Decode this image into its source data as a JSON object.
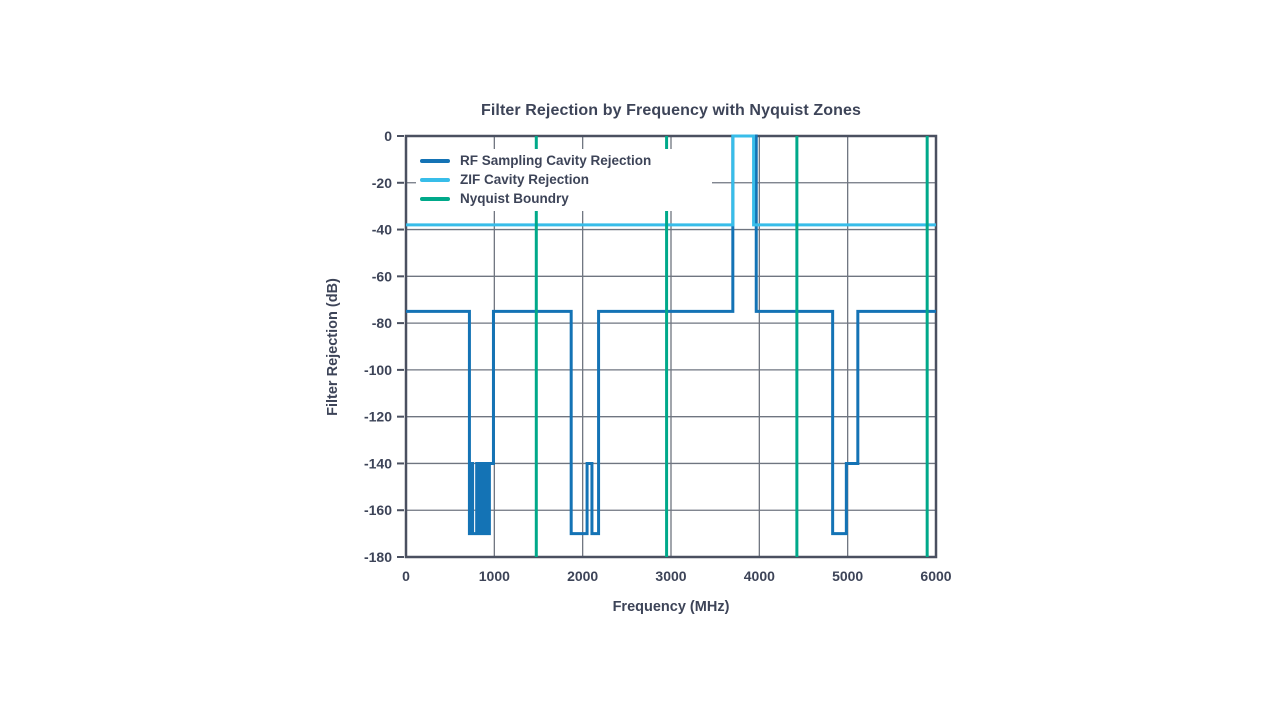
{
  "page": {
    "background": "#ffffff"
  },
  "palette": {
    "text": "#3d4458",
    "grid": "#6f7580",
    "frame": "#4a5060",
    "rf_blue": "#1473b5",
    "zif_cyan": "#38bde9",
    "nyquist_green": "#00a98a"
  },
  "chart_data": {
    "type": "line",
    "title": "Filter Rejection by Frequency with Nyquist Zones",
    "xlabel": "Frequency (MHz)",
    "ylabel": "Filter Rejection (dB)",
    "xlim": [
      0,
      6000
    ],
    "ylim": [
      -180,
      0
    ],
    "xticks": [
      0,
      1000,
      2000,
      3000,
      4000,
      5000,
      6000
    ],
    "yticks": [
      0,
      -20,
      -40,
      -60,
      -80,
      -100,
      -120,
      -140,
      -160,
      -180
    ],
    "grid": true,
    "legend_position": "inside-top-left",
    "series": [
      {
        "name": "RF Sampling Cavity Rejection",
        "color": "#1473b5",
        "style": "step-line",
        "points": [
          [
            0,
            -75
          ],
          [
            718,
            -75
          ],
          [
            718,
            -170
          ],
          [
            724,
            -170
          ],
          [
            724,
            -140
          ],
          [
            727,
            -140
          ],
          [
            727,
            -170
          ],
          [
            733,
            -170
          ],
          [
            733,
            -140
          ],
          [
            736,
            -140
          ],
          [
            736,
            -170
          ],
          [
            742,
            -170
          ],
          [
            742,
            -140
          ],
          [
            745,
            -140
          ],
          [
            745,
            -170
          ],
          [
            751,
            -170
          ],
          [
            751,
            -140
          ],
          [
            754,
            -140
          ],
          [
            754,
            -170
          ],
          [
            800,
            -170
          ],
          [
            800,
            -140
          ],
          [
            803,
            -140
          ],
          [
            803,
            -170
          ],
          [
            809,
            -170
          ],
          [
            809,
            -140
          ],
          [
            812,
            -140
          ],
          [
            812,
            -170
          ],
          [
            818,
            -170
          ],
          [
            818,
            -140
          ],
          [
            821,
            -140
          ],
          [
            821,
            -170
          ],
          [
            827,
            -170
          ],
          [
            827,
            -140
          ],
          [
            830,
            -140
          ],
          [
            830,
            -170
          ],
          [
            836,
            -170
          ],
          [
            836,
            -140
          ],
          [
            839,
            -140
          ],
          [
            839,
            -170
          ],
          [
            845,
            -170
          ],
          [
            845,
            -140
          ],
          [
            848,
            -140
          ],
          [
            848,
            -170
          ],
          [
            854,
            -170
          ],
          [
            854,
            -140
          ],
          [
            857,
            -140
          ],
          [
            857,
            -170
          ],
          [
            863,
            -170
          ],
          [
            863,
            -140
          ],
          [
            866,
            -140
          ],
          [
            866,
            -170
          ],
          [
            872,
            -170
          ],
          [
            872,
            -140
          ],
          [
            875,
            -140
          ],
          [
            875,
            -170
          ],
          [
            881,
            -170
          ],
          [
            881,
            -140
          ],
          [
            884,
            -140
          ],
          [
            884,
            -170
          ],
          [
            890,
            -170
          ],
          [
            890,
            -140
          ],
          [
            893,
            -140
          ],
          [
            893,
            -170
          ],
          [
            899,
            -170
          ],
          [
            899,
            -140
          ],
          [
            902,
            -140
          ],
          [
            902,
            -170
          ],
          [
            908,
            -170
          ],
          [
            908,
            -140
          ],
          [
            911,
            -140
          ],
          [
            911,
            -170
          ],
          [
            917,
            -170
          ],
          [
            917,
            -140
          ],
          [
            920,
            -140
          ],
          [
            920,
            -170
          ],
          [
            926,
            -170
          ],
          [
            926,
            -140
          ],
          [
            929,
            -140
          ],
          [
            929,
            -170
          ],
          [
            935,
            -170
          ],
          [
            935,
            -140
          ],
          [
            938,
            -140
          ],
          [
            938,
            -170
          ],
          [
            944,
            -170
          ],
          [
            944,
            -140
          ],
          [
            990,
            -140
          ],
          [
            990,
            -75
          ],
          [
            1870,
            -75
          ],
          [
            1870,
            -170
          ],
          [
            2050,
            -170
          ],
          [
            2050,
            -140
          ],
          [
            2105,
            -140
          ],
          [
            2105,
            -170
          ],
          [
            2180,
            -170
          ],
          [
            2180,
            -75
          ],
          [
            3700,
            -75
          ],
          [
            3700,
            0
          ],
          [
            3965,
            0
          ],
          [
            3965,
            -75
          ],
          [
            4830,
            -75
          ],
          [
            4830,
            -170
          ],
          [
            4985,
            -170
          ],
          [
            4985,
            -140
          ],
          [
            5115,
            -140
          ],
          [
            5115,
            -75
          ],
          [
            6000,
            -75
          ]
        ]
      },
      {
        "name": "ZIF Cavity Rejection",
        "color": "#38bde9",
        "style": "step-line",
        "points": [
          [
            0,
            -38
          ],
          [
            3700,
            -38
          ],
          [
            3700,
            0
          ],
          [
            3935,
            0
          ],
          [
            3935,
            -38
          ],
          [
            6000,
            -38
          ]
        ]
      },
      {
        "name": "Nyquist Boundry",
        "color": "#00a98a",
        "style": "vlines",
        "x": [
          1475,
          2950,
          4425,
          5900
        ]
      }
    ]
  }
}
